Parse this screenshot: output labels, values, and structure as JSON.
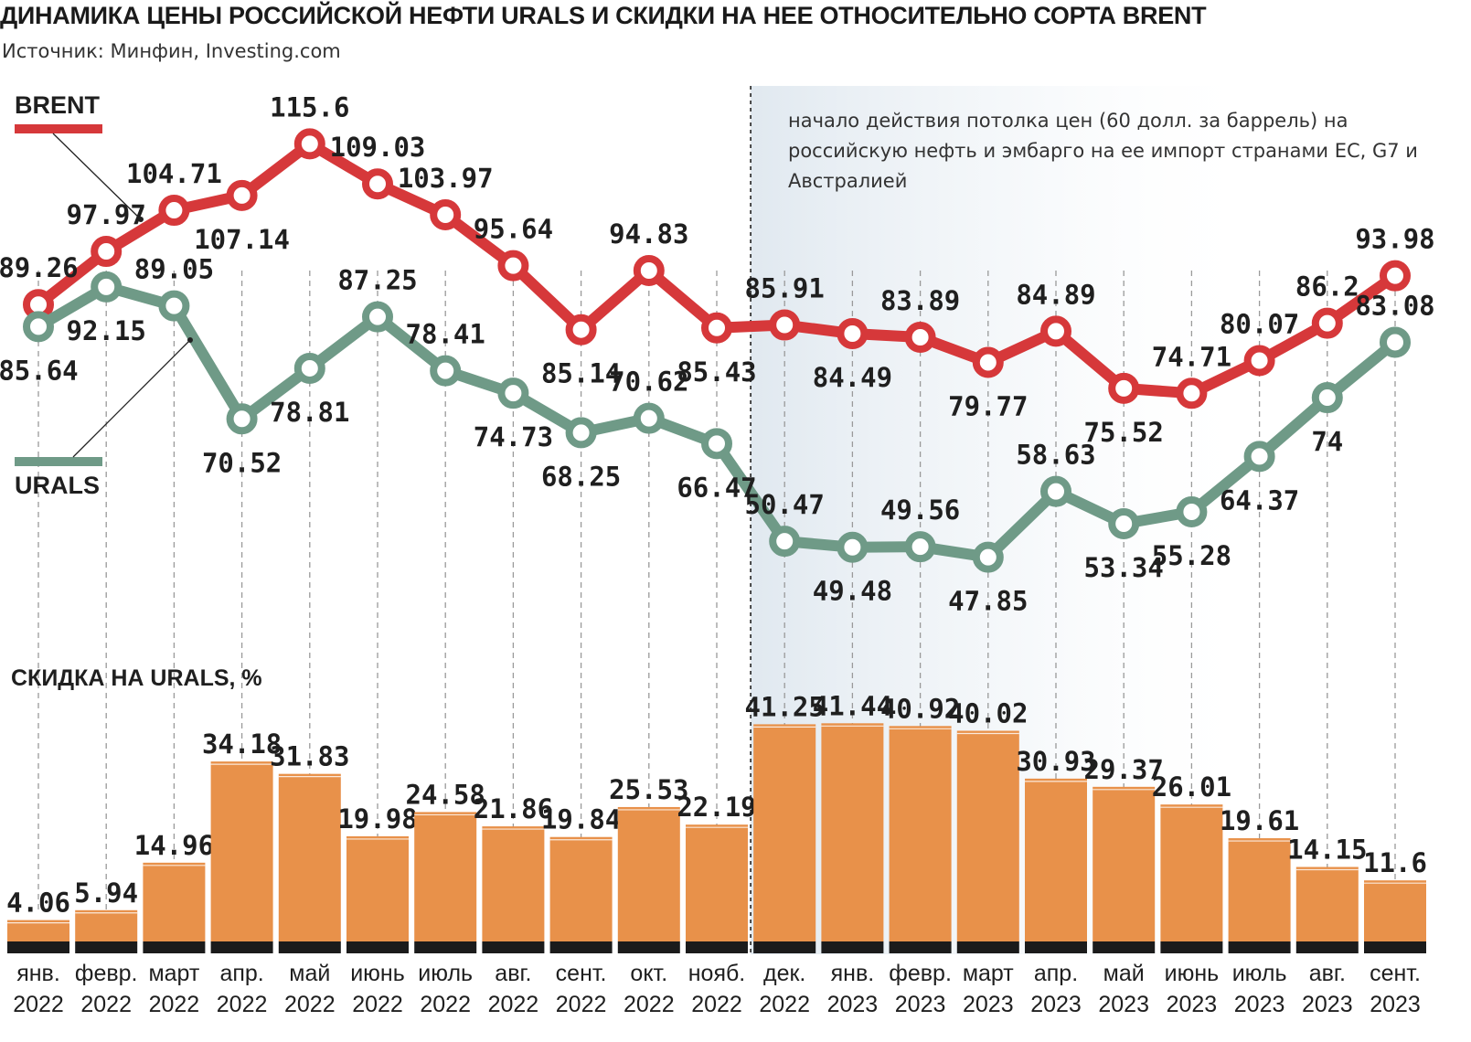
{
  "title": "ДИНАМИКА ЦЕНЫ РОССИЙСКОЙ НЕФТИ URALS И СКИДКИ НА НЕЕ ОТНОСИТЕЛЬНО СОРТА BRENT",
  "source": "Источник: Минфин, Investing.com",
  "annotation": "начало действия потолка цен (60 долл. за баррель) на российскую нефть и эмбарго на ее импорт странами ЕС, G7 и Австралией",
  "colors": {
    "brent": "#d6383a",
    "urals": "#6f9a87",
    "bar": "#e8914a",
    "bar_base": "#1b1b1b"
  },
  "chart_data": [
    {
      "type": "line",
      "x": [
        "янв. 2022",
        "февр. 2022",
        "март 2022",
        "апр. 2022",
        "май 2022",
        "июнь 2022",
        "июль 2022",
        "авг. 2022",
        "сент. 2022",
        "окт. 2022",
        "нояб. 2022",
        "дек. 2022",
        "янв. 2023",
        "февр. 2023",
        "март 2023",
        "апр. 2023",
        "май 2023",
        "июнь 2023",
        "июль 2023",
        "авг. 2023",
        "сент. 2023"
      ],
      "series": [
        {
          "name": "BRENT",
          "values": [
            89.26,
            97.97,
            104.71,
            107.14,
            115.6,
            109.03,
            103.97,
            95.64,
            85.14,
            94.83,
            85.43,
            85.91,
            84.49,
            83.89,
            79.77,
            84.89,
            75.52,
            74.71,
            80.07,
            86.2,
            93.98
          ]
        },
        {
          "name": "URALS",
          "values": [
            85.64,
            92.15,
            89.05,
            70.52,
            78.81,
            87.25,
            78.41,
            74.73,
            68.25,
            70.62,
            66.47,
            50.47,
            49.48,
            49.56,
            47.85,
            58.63,
            53.34,
            55.28,
            64.37,
            74,
            83.08
          ]
        }
      ],
      "ylim": [
        40,
        120
      ],
      "grid": "vertical dashed"
    },
    {
      "type": "bar",
      "title": "СКИДКА НА URALS, %",
      "categories": [
        "янв. 2022",
        "февр. 2022",
        "март 2022",
        "апр. 2022",
        "май 2022",
        "июнь 2022",
        "июль 2022",
        "авг. 2022",
        "сент. 2022",
        "окт. 2022",
        "нояб. 2022",
        "дек. 2022",
        "янв. 2023",
        "февр. 2023",
        "март 2023",
        "апр. 2023",
        "май 2023",
        "июнь 2023",
        "июль 2023",
        "авг. 2023",
        "сент. 2023"
      ],
      "values": [
        4.06,
        5.94,
        14.96,
        34.18,
        31.83,
        19.98,
        24.58,
        21.86,
        19.84,
        25.53,
        22.19,
        41.25,
        41.44,
        40.92,
        40.02,
        30.93,
        29.37,
        26.01,
        19.61,
        14.15,
        11.6
      ],
      "ylim": [
        0,
        45
      ]
    }
  ],
  "months": [
    [
      "янв.",
      "2022"
    ],
    [
      "февр.",
      "2022"
    ],
    [
      "март",
      "2022"
    ],
    [
      "апр.",
      "2022"
    ],
    [
      "май",
      "2022"
    ],
    [
      "июнь",
      "2022"
    ],
    [
      "июль",
      "2022"
    ],
    [
      "авг.",
      "2022"
    ],
    [
      "сент.",
      "2022"
    ],
    [
      "окт.",
      "2022"
    ],
    [
      "нояб.",
      "2022"
    ],
    [
      "дек.",
      "2022"
    ],
    [
      "янв.",
      "2023"
    ],
    [
      "февр.",
      "2023"
    ],
    [
      "март",
      "2023"
    ],
    [
      "апр.",
      "2023"
    ],
    [
      "май",
      "2023"
    ],
    [
      "июнь",
      "2023"
    ],
    [
      "июль",
      "2023"
    ],
    [
      "авг.",
      "2023"
    ],
    [
      "сент.",
      "2023"
    ]
  ]
}
